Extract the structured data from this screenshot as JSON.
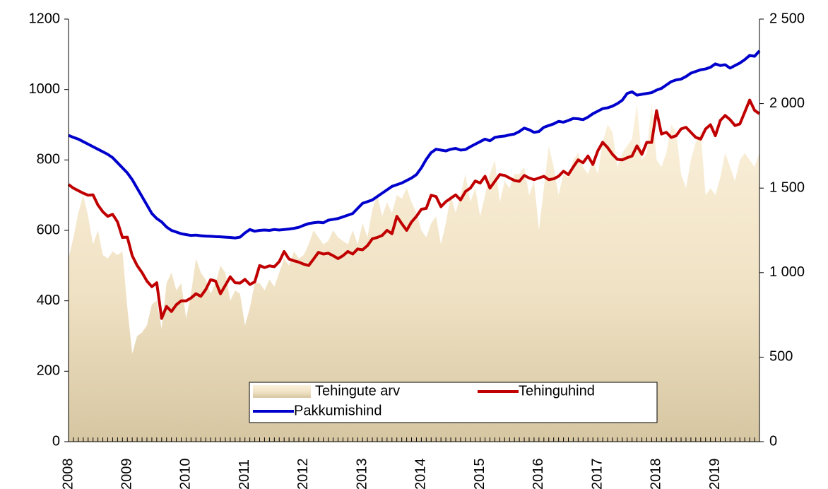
{
  "chart_data": {
    "type": "area-line",
    "categories": [
      "2008",
      null,
      null,
      null,
      null,
      null,
      null,
      null,
      null,
      null,
      null,
      null,
      "2009",
      null,
      null,
      null,
      null,
      null,
      null,
      null,
      null,
      null,
      null,
      null,
      "2010",
      null,
      null,
      null,
      null,
      null,
      null,
      null,
      null,
      null,
      null,
      null,
      "2011",
      null,
      null,
      null,
      null,
      null,
      null,
      null,
      null,
      null,
      null,
      null,
      "2012",
      null,
      null,
      null,
      null,
      null,
      null,
      null,
      null,
      null,
      null,
      null,
      "2013",
      null,
      null,
      null,
      null,
      null,
      null,
      null,
      null,
      null,
      null,
      null,
      "2014",
      null,
      null,
      null,
      null,
      null,
      null,
      null,
      null,
      null,
      null,
      null,
      "2015",
      null,
      null,
      null,
      null,
      null,
      null,
      null,
      null,
      null,
      null,
      null,
      "2016",
      null,
      null,
      null,
      null,
      null,
      null,
      null,
      null,
      null,
      null,
      null,
      "2017",
      null,
      null,
      null,
      null,
      null,
      null,
      null,
      null,
      null,
      null,
      null,
      "2018",
      null,
      null,
      null,
      null,
      null,
      null,
      null,
      null,
      null,
      null,
      null,
      "2019",
      null,
      null,
      null,
      null,
      null,
      null,
      null,
      null,
      null
    ],
    "series": [
      {
        "name": "Tehingute arv",
        "color": "#f3e6c8",
        "kind": "area",
        "values": [
          520,
          580,
          650,
          700,
          640,
          560,
          600,
          530,
          520,
          540,
          530,
          540,
          380,
          250,
          300,
          310,
          330,
          390,
          400,
          320,
          450,
          480,
          430,
          450,
          350,
          420,
          520,
          480,
          460,
          420,
          450,
          500,
          480,
          400,
          430,
          420,
          330,
          380,
          450,
          450,
          430,
          460,
          440,
          480,
          520,
          500,
          540,
          520,
          530,
          560,
          600,
          580,
          560,
          570,
          600,
          580,
          570,
          560,
          600,
          560,
          620,
          580,
          660,
          700,
          640,
          680,
          650,
          700,
          690,
          720,
          680,
          650,
          600,
          580,
          620,
          640,
          560,
          620,
          700,
          650,
          700,
          760,
          680,
          720,
          640,
          700,
          760,
          800,
          680,
          740,
          720,
          760,
          760,
          780,
          700,
          740,
          600,
          720,
          840,
          780,
          700,
          760,
          750,
          800,
          820,
          780,
          760,
          800,
          760,
          850,
          900,
          880,
          780,
          820,
          840,
          860,
          960,
          800,
          820,
          960,
          800,
          780,
          820,
          900,
          880,
          760,
          720,
          800,
          850,
          880,
          700,
          720,
          700,
          750,
          820,
          780,
          740,
          800,
          820,
          800,
          780,
          820
        ]
      },
      {
        "name": "Tehinguhind",
        "color": "#c00000",
        "kind": "line",
        "axis": "y2",
        "values": [
          1521,
          1500,
          1485,
          1470,
          1458,
          1460,
          1400,
          1360,
          1333,
          1345,
          1300,
          1208,
          1210,
          1100,
          1042,
          1000,
          950,
          917,
          940,
          729,
          800,
          770,
          810,
          833,
          833,
          850,
          875,
          860,
          900,
          958,
          950,
          875,
          925,
          975,
          940,
          938,
          960,
          930,
          945,
          1042,
          1030,
          1040,
          1035,
          1065,
          1125,
          1080,
          1070,
          1062,
          1050,
          1042,
          1080,
          1120,
          1110,
          1115,
          1100,
          1083,
          1100,
          1125,
          1110,
          1140,
          1135,
          1160,
          1200,
          1208,
          1220,
          1250,
          1230,
          1333,
          1290,
          1250,
          1300,
          1333,
          1375,
          1380,
          1458,
          1450,
          1390,
          1420,
          1440,
          1460,
          1430,
          1480,
          1500,
          1542,
          1530,
          1570,
          1500,
          1540,
          1580,
          1575,
          1560,
          1545,
          1540,
          1575,
          1560,
          1550,
          1560,
          1570,
          1550,
          1555,
          1570,
          1600,
          1580,
          1625,
          1667,
          1650,
          1690,
          1640,
          1720,
          1771,
          1740,
          1700,
          1670,
          1667,
          1680,
          1690,
          1750,
          1700,
          1771,
          1770,
          1958,
          1820,
          1830,
          1800,
          1810,
          1850,
          1860,
          1830,
          1800,
          1790,
          1850,
          1875,
          1810,
          1900,
          1930,
          1905,
          1870,
          1880,
          1950,
          2021,
          1960,
          1940
        ]
      },
      {
        "name": "Pakkumishind",
        "color": "#0000cc",
        "kind": "line",
        "axis": "y2",
        "values": [
          1812,
          1800,
          1790,
          1775,
          1760,
          1745,
          1730,
          1715,
          1700,
          1680,
          1650,
          1620,
          1590,
          1550,
          1500,
          1450,
          1400,
          1350,
          1320,
          1300,
          1270,
          1250,
          1240,
          1230,
          1225,
          1220,
          1222,
          1218,
          1216,
          1215,
          1213,
          1212,
          1210,
          1208,
          1205,
          1210,
          1235,
          1255,
          1245,
          1250,
          1252,
          1250,
          1255,
          1252,
          1255,
          1258,
          1262,
          1268,
          1280,
          1290,
          1295,
          1298,
          1295,
          1310,
          1315,
          1320,
          1330,
          1340,
          1350,
          1380,
          1410,
          1420,
          1430,
          1450,
          1470,
          1490,
          1510,
          1520,
          1530,
          1545,
          1560,
          1580,
          1620,
          1670,
          1710,
          1730,
          1725,
          1720,
          1730,
          1735,
          1725,
          1728,
          1745,
          1760,
          1775,
          1790,
          1780,
          1800,
          1805,
          1808,
          1815,
          1820,
          1835,
          1855,
          1845,
          1830,
          1835,
          1860,
          1870,
          1880,
          1895,
          1890,
          1900,
          1912,
          1910,
          1905,
          1920,
          1940,
          1955,
          1970,
          1975,
          1985,
          2000,
          2020,
          2060,
          2070,
          2050,
          2055,
          2060,
          2065,
          2080,
          2090,
          2110,
          2130,
          2140,
          2145,
          2160,
          2180,
          2190,
          2200,
          2205,
          2215,
          2235,
          2225,
          2230,
          2210,
          2225,
          2240,
          2260,
          2285,
          2280,
          2312
        ]
      }
    ],
    "ylim": [
      0,
      1200
    ],
    "yticks": [
      0,
      200,
      400,
      600,
      800,
      1000,
      1200
    ],
    "y2lim": [
      0,
      2500
    ],
    "y2ticks": [
      0,
      500,
      {
        "value": 1000,
        "label": "1 000"
      },
      {
        "value": 1500,
        "label": "1 500"
      },
      {
        "value": 2000,
        "label": "2 000"
      },
      {
        "value": 2500,
        "label": "2 500"
      }
    ]
  }
}
